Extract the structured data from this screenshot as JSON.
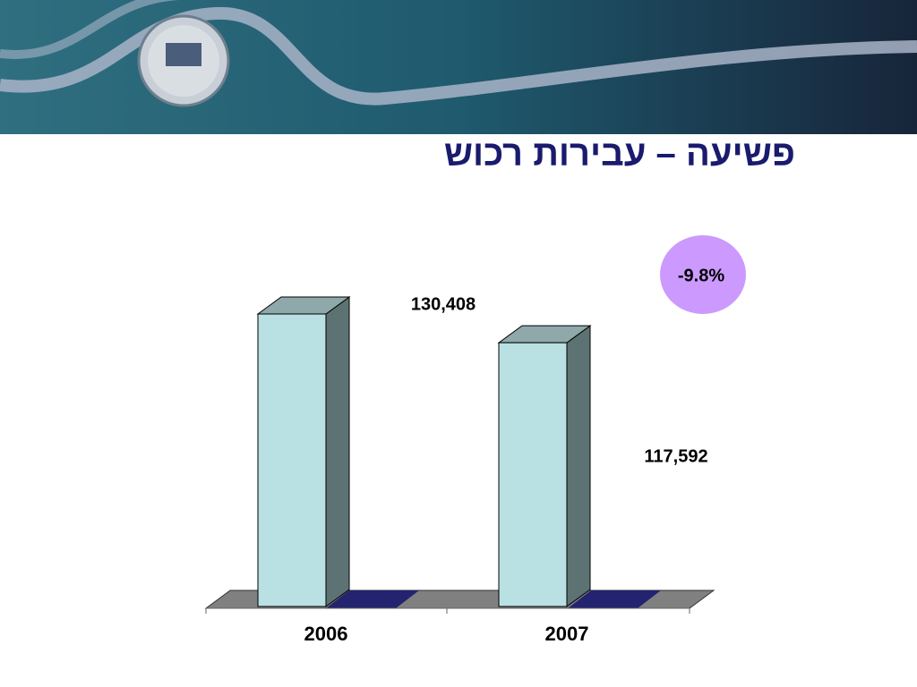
{
  "chart_data": {
    "type": "bar3d",
    "title": "פשיעה – עבירות רכוש",
    "categories": [
      "2006",
      "2007"
    ],
    "values": [
      130408,
      117592
    ],
    "value_labels": [
      "130,408",
      "117,592"
    ],
    "color": "#b9e0e3",
    "annotation": "-9.8%",
    "annotation_color": "#cc99ff"
  }
}
